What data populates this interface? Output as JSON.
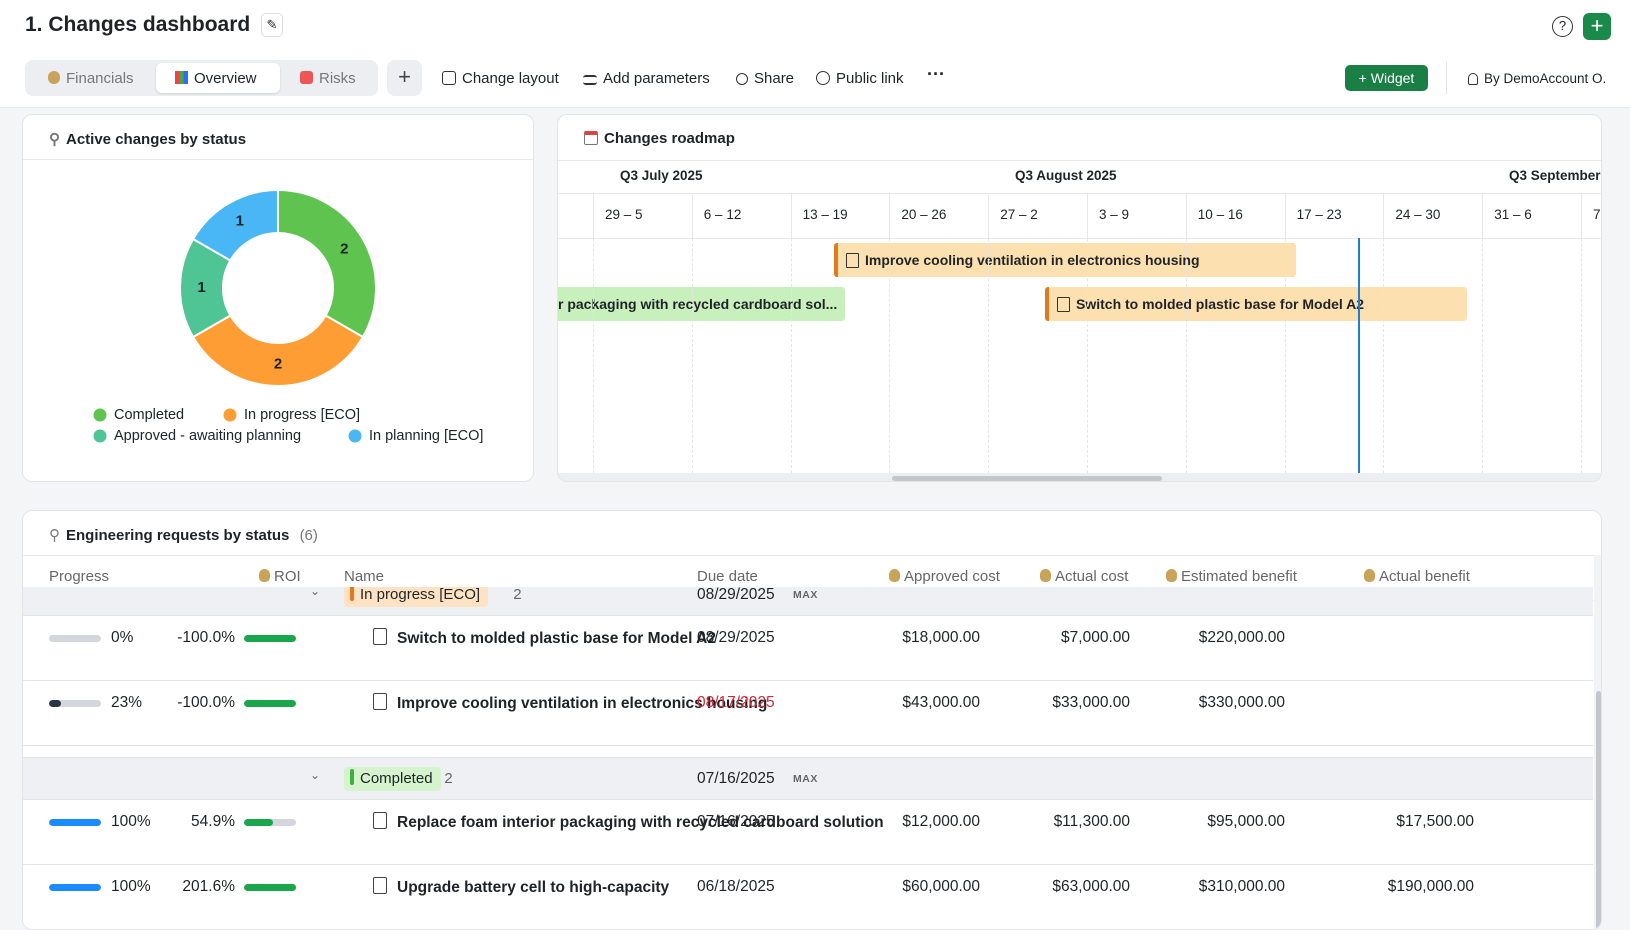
{
  "header": {
    "title": "1. Changes dashboard",
    "tabs": [
      "Financials",
      "Overview",
      "Risks"
    ],
    "active_tab": 1,
    "toolbar": [
      "Change layout",
      "Add parameters",
      "Share",
      "Public link"
    ],
    "widget_button": "Widget",
    "account": "By DemoAccount O."
  },
  "chart_data": {
    "type": "pie",
    "title": "Active changes by status",
    "donut": true,
    "categories": [
      "Completed",
      "In progress [ECO]",
      "Approved - awaiting planning",
      "In planning [ECO]"
    ],
    "values": [
      2,
      2,
      1,
      1
    ],
    "colors": [
      "#5fc34f",
      "#ff9d35",
      "#4fc494",
      "#49b6f5"
    ]
  },
  "roadmap": {
    "title": "Changes roadmap",
    "months": [
      "Q3 July 2025",
      "Q3 August 2025",
      "Q3 September"
    ],
    "weeks": [
      "29 – 5",
      "6 – 12",
      "13 – 19",
      "20 – 26",
      "27 – 2",
      "3 – 9",
      "10 – 16",
      "17 – 23",
      "24 – 30",
      "31 – 6",
      "7"
    ],
    "bars": [
      {
        "label": "Improve cooling ventilation in electronics housing",
        "color": "#fde0b0",
        "accent": "#e07a1f"
      },
      {
        "label": "r packaging with recycled cardboard sol...",
        "color": "#c8f0bd"
      },
      {
        "label": "Switch to molded plastic base for Model A2",
        "color": "#fde0b0",
        "accent": "#e07a1f"
      }
    ]
  },
  "table": {
    "title": "Engineering requests by status",
    "count": "(6)",
    "columns": [
      "Progress",
      "ROI",
      "Name",
      "Due date",
      "Approved cost",
      "Actual cost",
      "Estimated benefit",
      "Actual benefit"
    ],
    "groups": [
      {
        "status": "In progress [ECO]",
        "color": "#fde3c3",
        "accent": "#e8741c",
        "count": 2,
        "due": "08/29/2025",
        "aggregate": "MAX",
        "rows": [
          {
            "progress": {
              "value": 0,
              "label": "0%"
            },
            "roi": {
              "value": -100.0,
              "label": "-100.0%"
            },
            "name": "Switch to molded plastic base for Model A2",
            "due": "08/29/2025",
            "approved_cost": "$18,000.00",
            "actual_cost": "$7,000.00",
            "estimated_benefit": "$220,000.00"
          },
          {
            "progress": {
              "value": 23,
              "label": "23%"
            },
            "roi": {
              "value": -100.0,
              "label": "-100.0%"
            },
            "name": "Improve cooling ventilation in electronics housing",
            "due": "08/17/2025",
            "overdue": true,
            "approved_cost": "$43,000.00",
            "actual_cost": "$33,000.00",
            "estimated_benefit": "$330,000.00"
          }
        ]
      },
      {
        "status": "Completed",
        "color": "#d5f3cd",
        "accent": "#3db03d",
        "count": 2,
        "due": "07/16/2025",
        "aggregate": "MAX",
        "rows": [
          {
            "progress": {
              "value": 100,
              "label": "100%"
            },
            "roi": {
              "value": 54.9,
              "label": "54.9%"
            },
            "name": "Replace foam interior packaging with recycled cardboard solution",
            "due": "07/16/2025",
            "approved_cost": "$12,000.00",
            "actual_cost": "$11,300.00",
            "estimated_benefit": "$95,000.00",
            "actual_benefit": "$17,500.00"
          },
          {
            "progress": {
              "value": 100,
              "label": "100%"
            },
            "roi": {
              "value": 201.6,
              "label": "201.6%"
            },
            "name": "Upgrade battery cell to high-capacity",
            "due": "06/18/2025",
            "approved_cost": "$60,000.00",
            "actual_cost": "$63,000.00",
            "estimated_benefit": "$310,000.00",
            "actual_benefit": "$190,000.00"
          }
        ]
      }
    ]
  }
}
